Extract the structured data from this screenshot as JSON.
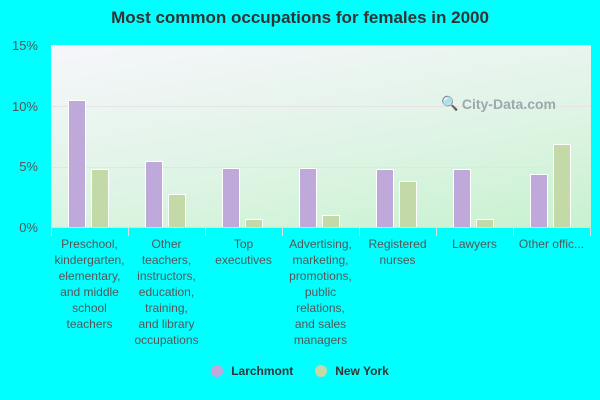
{
  "chart_data": {
    "type": "bar",
    "title": "Most common occupations for females in 2000",
    "xlabel": "",
    "ylabel": "",
    "ylim": [
      0,
      15
    ],
    "yticks": [
      "0%",
      "5%",
      "10%",
      "15%"
    ],
    "grid": true,
    "legend_position": "bottom",
    "categories": [
      "Preschool,\nkindergarten,\nelementary,\nand middle\nschool\nteachers",
      "Other\nteachers,\ninstructors,\neducation,\ntraining,\nand library\noccupations",
      "Top\nexecutives",
      "Advertising,\nmarketing,\npromotions,\npublic\nrelations,\nand sales\nmanagers",
      "Registered\nnurses",
      "Lawyers",
      "Other offic..."
    ],
    "series": [
      {
        "name": "Larchmont",
        "color": "#bea9da",
        "values": [
          10.5,
          5.4,
          4.9,
          4.9,
          4.8,
          4.8,
          4.4
        ]
      },
      {
        "name": "New York",
        "color": "#c3d9a8",
        "values": [
          4.8,
          2.7,
          0.7,
          1.0,
          3.8,
          0.7,
          6.8
        ]
      }
    ]
  },
  "watermark": "City-Data.com"
}
